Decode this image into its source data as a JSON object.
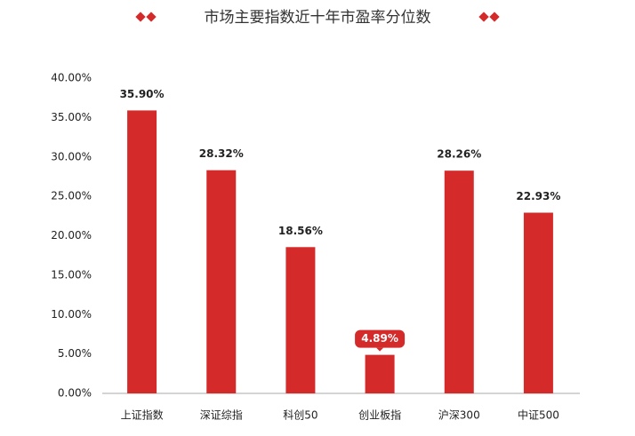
{
  "chart_data": {
    "type": "bar",
    "title": "市场主要指数近十年市盈率分位数",
    "categories": [
      "上证指数",
      "深证综指",
      "科创50",
      "创业板指",
      "沪深300",
      "中证500"
    ],
    "values": [
      35.9,
      28.32,
      18.56,
      4.89,
      28.26,
      22.93
    ],
    "value_labels": [
      "35.90%",
      "28.32%",
      "18.56%",
      "4.89%",
      "28.26%",
      "22.93%"
    ],
    "highlighted_label": 3,
    "color": "#d42a2a",
    "ylim": [
      0,
      40
    ],
    "yticks": [
      {
        "value": 0,
        "label": "0.00%"
      },
      {
        "value": 5,
        "label": "5.00%"
      },
      {
        "value": 10,
        "label": "10.00%"
      },
      {
        "value": 15,
        "label": "15.00%"
      },
      {
        "value": 20,
        "label": "20.00%"
      },
      {
        "value": 25,
        "label": "25.00%"
      },
      {
        "value": 30,
        "label": "30.00%"
      },
      {
        "value": 35,
        "label": "35.00%"
      },
      {
        "value": 40,
        "label": "40.00%"
      }
    ],
    "grid": false
  }
}
